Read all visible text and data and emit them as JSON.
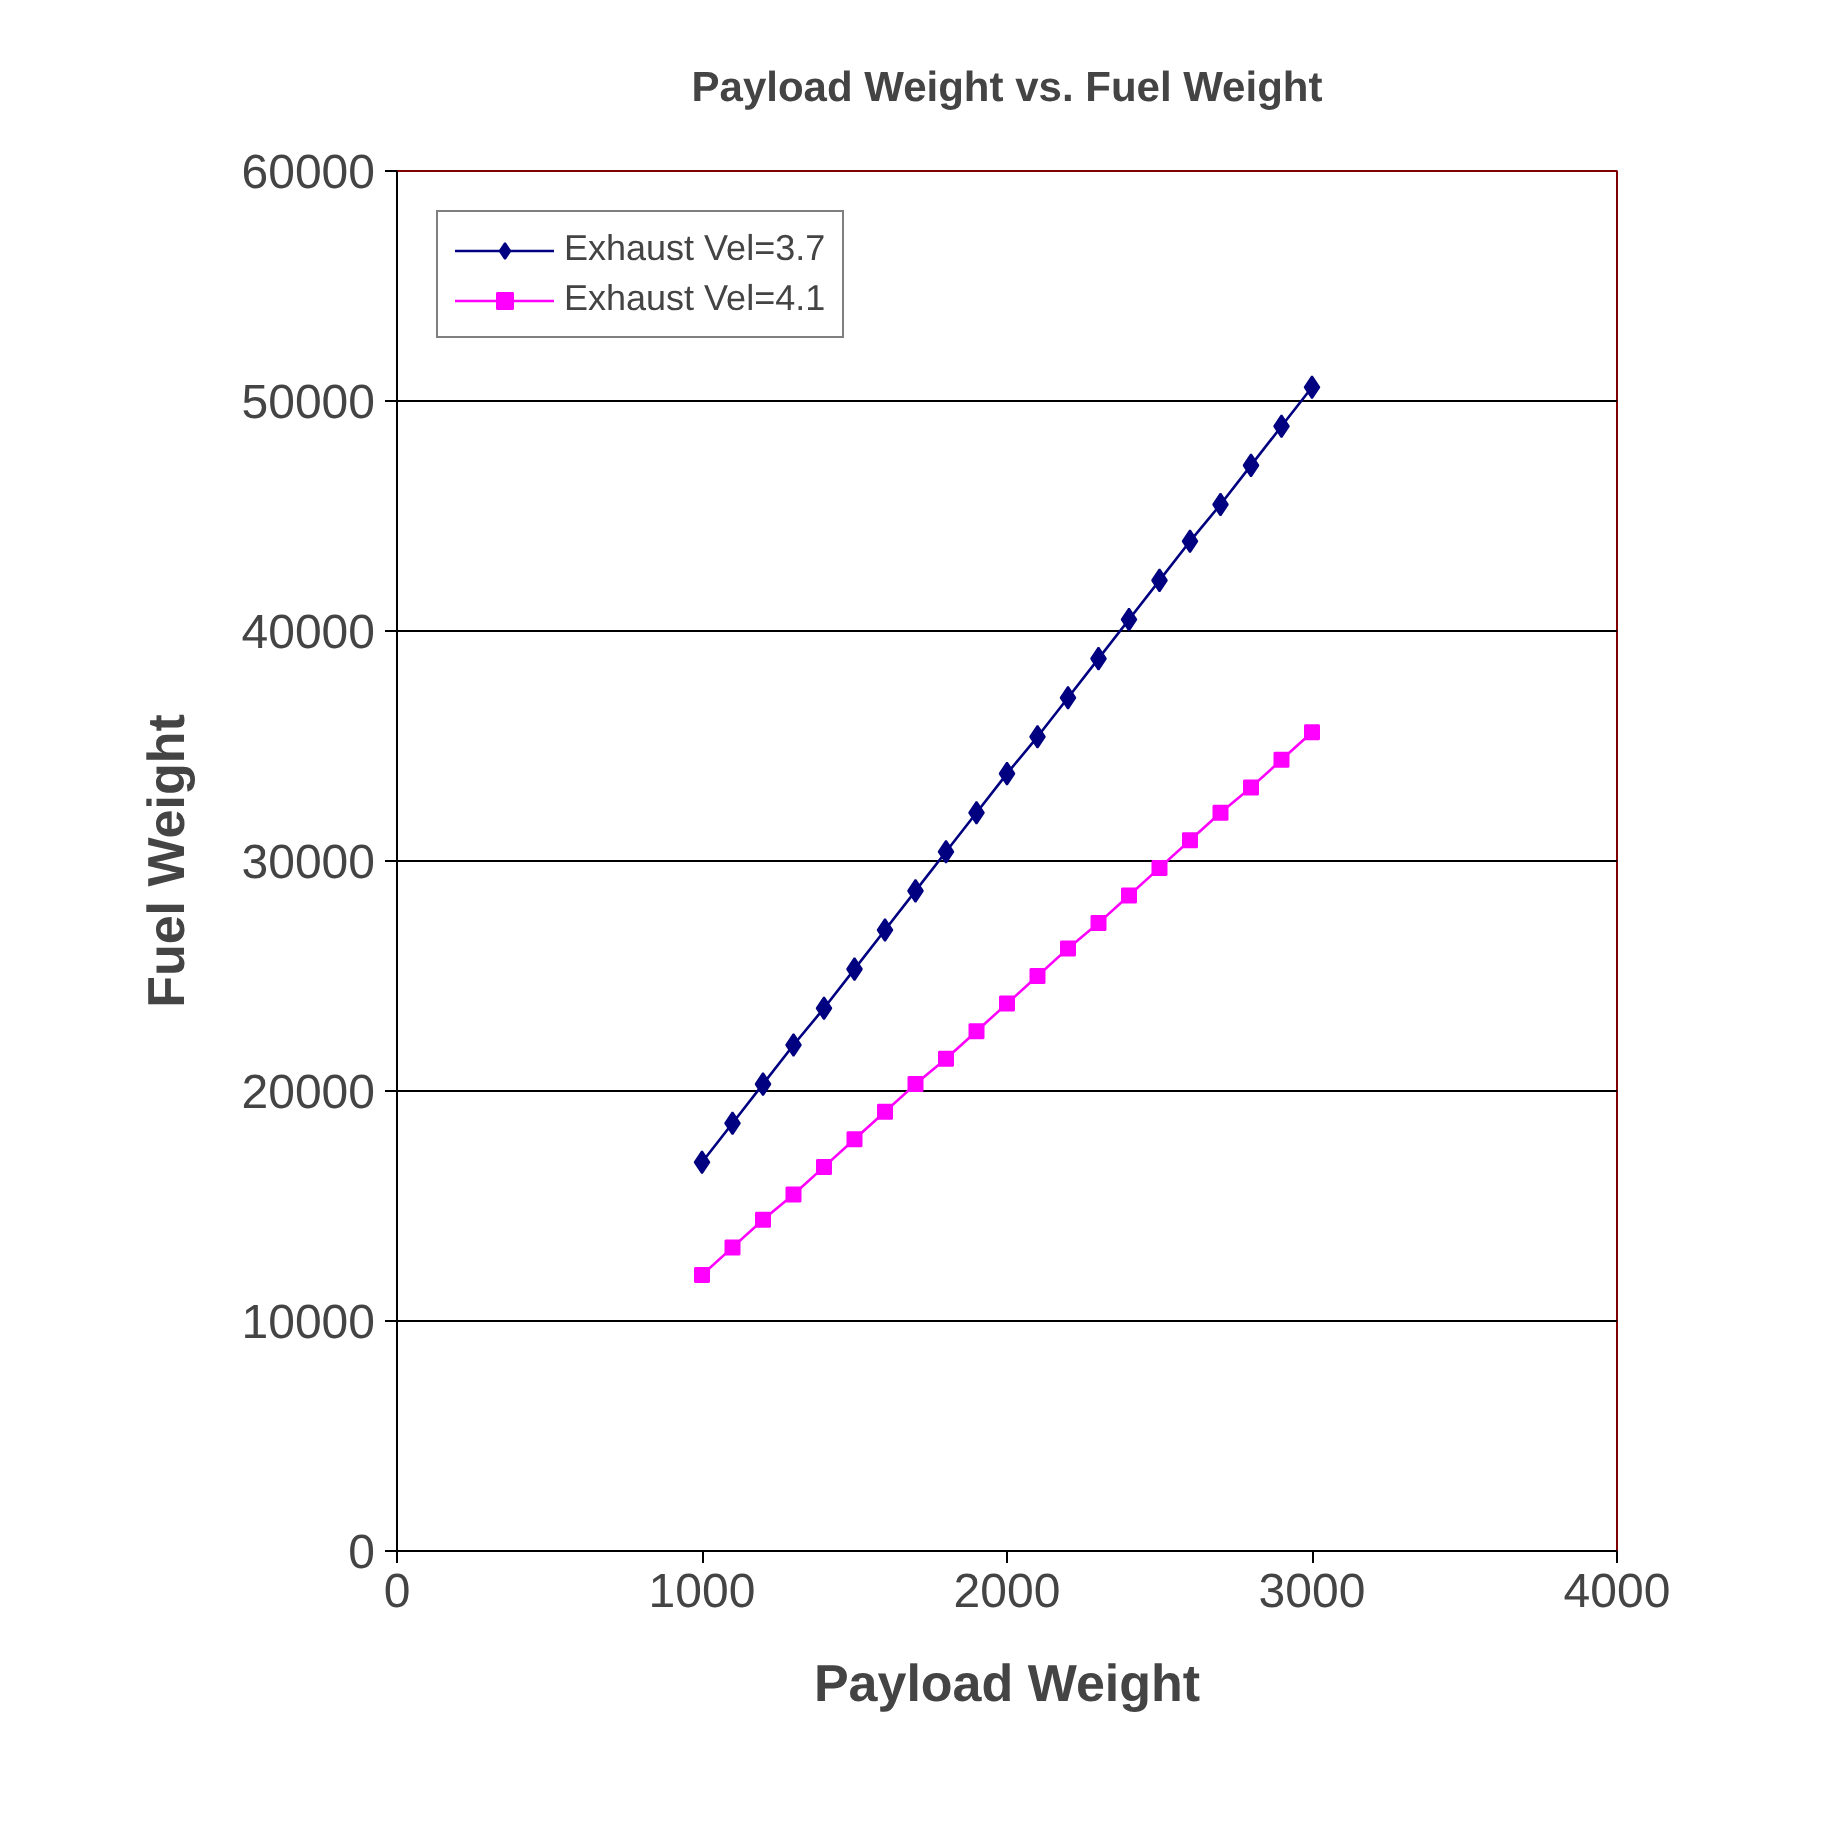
{
  "chart_data": {
    "type": "line",
    "title": "Payload Weight vs. Fuel Weight",
    "xlabel": "Payload Weight",
    "ylabel": "Fuel Weight",
    "x": [
      1000,
      1100,
      1200,
      1300,
      1400,
      1500,
      1600,
      1700,
      1800,
      1900,
      2000,
      2100,
      2200,
      2300,
      2400,
      2500,
      2600,
      2700,
      2800,
      2900,
      3000
    ],
    "series": [
      {
        "name": "Exhaust Vel=3.7",
        "color": "#000080",
        "marker": "diamond",
        "values": [
          16900,
          18600,
          20300,
          22000,
          23600,
          25300,
          27000,
          28700,
          30400,
          32100,
          33800,
          35400,
          37100,
          38800,
          40500,
          42200,
          43900,
          45500,
          47200,
          48900,
          50600
        ]
      },
      {
        "name": "Exhaust Vel=4.1",
        "color": "#ff00ff",
        "marker": "square",
        "values": [
          12000,
          13200,
          14400,
          15500,
          16700,
          17900,
          19100,
          20300,
          21400,
          22600,
          23800,
          25000,
          26200,
          27300,
          28500,
          29700,
          30900,
          32100,
          33200,
          34400,
          35600
        ]
      }
    ],
    "xlim": [
      0,
      4000
    ],
    "xticks": [
      0,
      1000,
      2000,
      3000,
      4000
    ],
    "ylim": [
      0,
      60000
    ],
    "yticks": [
      0,
      10000,
      20000,
      30000,
      40000,
      50000,
      60000
    ],
    "grid": "y",
    "legend": "top left",
    "line_style": "solid"
  }
}
